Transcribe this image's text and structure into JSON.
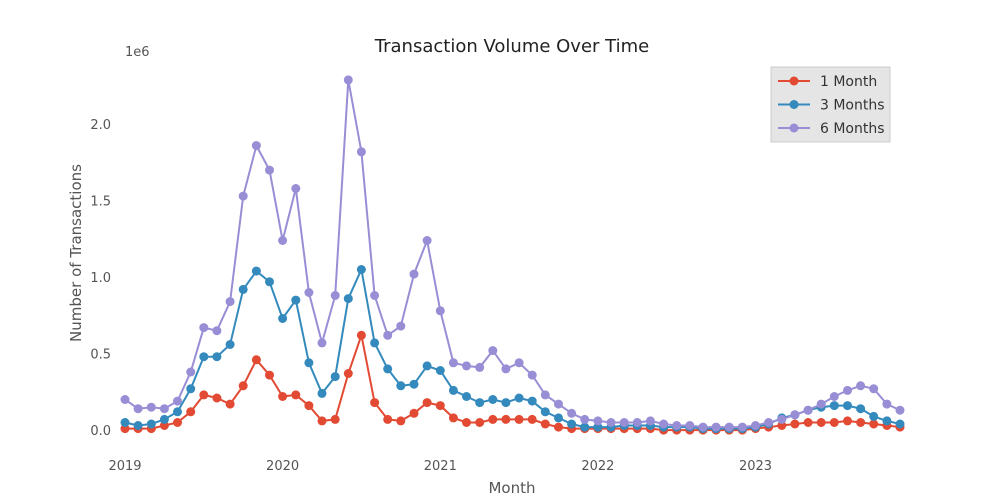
{
  "chart_data": {
    "type": "line",
    "title": "Transaction Volume Over Time",
    "xlabel": "Month",
    "ylabel": "Number of Transactions",
    "y_offset_label": "1e6",
    "y_multiplier": 1000000,
    "x_ticks": [
      "2019",
      "2020",
      "2021",
      "2022",
      "2023"
    ],
    "y_ticks": [
      "0.0",
      "0.5",
      "1.0",
      "1.5",
      "2.0"
    ],
    "xlim": [
      "2019-01",
      "2023-12"
    ],
    "ylim": [
      -0.13,
      2.42
    ],
    "grid": false,
    "legend_position": "top-right",
    "x": [
      "2019-01",
      "2019-02",
      "2019-03",
      "2019-04",
      "2019-05",
      "2019-06",
      "2019-07",
      "2019-08",
      "2019-09",
      "2019-10",
      "2019-11",
      "2019-12",
      "2020-01",
      "2020-02",
      "2020-03",
      "2020-04",
      "2020-05",
      "2020-06",
      "2020-07",
      "2020-08",
      "2020-09",
      "2020-10",
      "2020-11",
      "2020-12",
      "2021-01",
      "2021-02",
      "2021-03",
      "2021-04",
      "2021-05",
      "2021-06",
      "2021-07",
      "2021-08",
      "2021-09",
      "2021-10",
      "2021-11",
      "2021-12",
      "2022-01",
      "2022-02",
      "2022-03",
      "2022-04",
      "2022-05",
      "2022-06",
      "2022-07",
      "2022-08",
      "2022-09",
      "2022-10",
      "2022-11",
      "2022-12",
      "2023-01",
      "2023-02",
      "2023-03",
      "2023-04",
      "2023-05",
      "2023-06",
      "2023-07",
      "2023-08",
      "2023-09",
      "2023-10",
      "2023-11",
      "2023-12"
    ],
    "series": [
      {
        "name": "1 Month",
        "color": "#E24A33",
        "values": [
          0.01,
          0.01,
          0.01,
          0.03,
          0.05,
          0.12,
          0.23,
          0.21,
          0.17,
          0.29,
          0.46,
          0.36,
          0.22,
          0.23,
          0.16,
          0.06,
          0.07,
          0.37,
          0.62,
          0.18,
          0.07,
          0.06,
          0.11,
          0.18,
          0.16,
          0.08,
          0.05,
          0.05,
          0.07,
          0.07,
          0.07,
          0.07,
          0.04,
          0.02,
          0.01,
          0.01,
          0.01,
          0.01,
          0.01,
          0.01,
          0.01,
          0.0,
          0.0,
          0.0,
          0.0,
          0.0,
          0.0,
          0.0,
          0.01,
          0.02,
          0.03,
          0.04,
          0.05,
          0.05,
          0.05,
          0.06,
          0.05,
          0.04,
          0.03,
          0.02
        ]
      },
      {
        "name": "3 Months",
        "color": "#348ABD",
        "values": [
          0.05,
          0.03,
          0.04,
          0.07,
          0.12,
          0.27,
          0.48,
          0.48,
          0.56,
          0.92,
          1.04,
          0.97,
          0.73,
          0.85,
          0.44,
          0.24,
          0.35,
          0.86,
          1.05,
          0.57,
          0.4,
          0.29,
          0.3,
          0.42,
          0.39,
          0.26,
          0.22,
          0.18,
          0.2,
          0.18,
          0.21,
          0.19,
          0.12,
          0.08,
          0.04,
          0.02,
          0.02,
          0.02,
          0.03,
          0.03,
          0.03,
          0.02,
          0.02,
          0.02,
          0.01,
          0.01,
          0.01,
          0.01,
          0.02,
          0.04,
          0.08,
          0.1,
          0.13,
          0.15,
          0.16,
          0.16,
          0.14,
          0.09,
          0.06,
          0.04
        ]
      },
      {
        "name": "6 Months",
        "color": "#988ED5",
        "values": [
          0.2,
          0.14,
          0.15,
          0.14,
          0.19,
          0.38,
          0.67,
          0.65,
          0.84,
          1.53,
          1.86,
          1.7,
          1.24,
          1.58,
          0.9,
          0.57,
          0.88,
          2.29,
          1.82,
          0.88,
          0.62,
          0.68,
          1.02,
          1.24,
          0.78,
          0.44,
          0.42,
          0.41,
          0.52,
          0.4,
          0.44,
          0.36,
          0.23,
          0.17,
          0.11,
          0.07,
          0.06,
          0.05,
          0.05,
          0.05,
          0.06,
          0.04,
          0.03,
          0.03,
          0.02,
          0.02,
          0.02,
          0.02,
          0.03,
          0.05,
          0.07,
          0.1,
          0.13,
          0.17,
          0.22,
          0.26,
          0.29,
          0.27,
          0.17,
          0.13
        ]
      }
    ]
  }
}
